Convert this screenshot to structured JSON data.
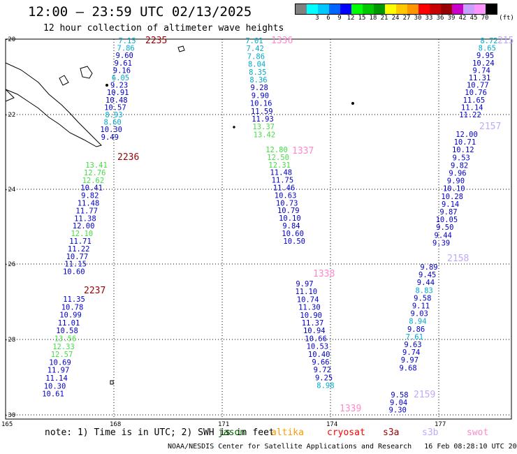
{
  "header": {
    "title": "12:00 – 23:59 UTC 02/13/2025",
    "subtitle": "12 hour collection of altimeter wave heights"
  },
  "legend": {
    "unit": "(ft)",
    "items": [
      {
        "label": "",
        "color": "#808080"
      },
      {
        "label": "3",
        "color": "#00ffff"
      },
      {
        "label": "6",
        "color": "#00c8ff"
      },
      {
        "label": "9",
        "color": "#0064ff"
      },
      {
        "label": "12",
        "color": "#0000ff"
      },
      {
        "label": "15",
        "color": "#00ff00"
      },
      {
        "label": "18",
        "color": "#00c800"
      },
      {
        "label": "21",
        "color": "#009600"
      },
      {
        "label": "24",
        "color": "#ffff00"
      },
      {
        "label": "27",
        "color": "#ffc800"
      },
      {
        "label": "30",
        "color": "#ff9600"
      },
      {
        "label": "33",
        "color": "#ff0000"
      },
      {
        "label": "36",
        "color": "#c80000"
      },
      {
        "label": "39",
        "color": "#960000"
      },
      {
        "label": "42",
        "color": "#c800c8"
      },
      {
        "label": "45",
        "color": "#c8a0ff"
      },
      {
        "label": "70",
        "color": "#ff96ff"
      },
      {
        "label": "",
        "color": "#000000"
      }
    ]
  },
  "axes": {
    "lat_labels": [
      "-20",
      "-22",
      "-24",
      "-26",
      "-28",
      "-30"
    ],
    "lon_labels": [
      "165",
      "168",
      "171",
      "174",
      "177"
    ]
  },
  "palette": {
    "blue": "#0000cc",
    "cyan": "#00aacc",
    "green": "#44dd44",
    "dkred": "#990000",
    "pink": "#ff88cc",
    "lav": "#c0a8ff"
  },
  "tracks": [
    {
      "time_label": {
        "text": "2235",
        "color": "dkred"
      },
      "values": [
        {
          "v": "7.15",
          "c": "cyan"
        },
        {
          "v": "7.86",
          "c": "cyan"
        },
        {
          "v": "9.60",
          "c": "blue"
        },
        {
          "v": "9.61",
          "c": "blue"
        },
        {
          "v": "9.16",
          "c": "blue"
        },
        {
          "v": "6.05",
          "c": "cyan"
        },
        {
          "v": "9.23",
          "c": "blue"
        },
        {
          "v": "10.91",
          "c": "blue"
        },
        {
          "v": "10.48",
          "c": "blue"
        },
        {
          "v": "10.57",
          "c": "blue"
        },
        {
          "v": "8.93",
          "c": "cyan"
        },
        {
          "v": "8.60",
          "c": "cyan"
        },
        {
          "v": "10.30",
          "c": "blue"
        },
        {
          "v": "9.49",
          "c": "blue"
        }
      ]
    },
    {
      "time_label": {
        "text": "2236",
        "color": "dkred"
      },
      "values": [
        {
          "v": "13.41",
          "c": "green"
        },
        {
          "v": "12.76",
          "c": "green"
        },
        {
          "v": "12.62",
          "c": "green"
        },
        {
          "v": "10.41",
          "c": "blue"
        },
        {
          "v": "9.82",
          "c": "blue"
        },
        {
          "v": "11.48",
          "c": "blue"
        },
        {
          "v": "11.77",
          "c": "blue"
        },
        {
          "v": "11.38",
          "c": "blue"
        },
        {
          "v": "12.00",
          "c": "blue"
        },
        {
          "v": "12.10",
          "c": "green"
        },
        {
          "v": "11.71",
          "c": "blue"
        },
        {
          "v": "11.22",
          "c": "blue"
        },
        {
          "v": "10.77",
          "c": "blue"
        },
        {
          "v": "11.15",
          "c": "blue"
        },
        {
          "v": "10.60",
          "c": "blue"
        }
      ]
    },
    {
      "time_label": {
        "text": "2237",
        "color": "dkred"
      },
      "values": [
        {
          "v": "11.35",
          "c": "blue"
        },
        {
          "v": "10.78",
          "c": "blue"
        },
        {
          "v": "10.99",
          "c": "blue"
        },
        {
          "v": "11.01",
          "c": "blue"
        },
        {
          "v": "10.58",
          "c": "blue"
        },
        {
          "v": "13.56",
          "c": "green"
        },
        {
          "v": "12.33",
          "c": "green"
        },
        {
          "v": "12.57",
          "c": "green"
        },
        {
          "v": "10.69",
          "c": "blue"
        },
        {
          "v": "11.97",
          "c": "blue"
        },
        {
          "v": "11.14",
          "c": "blue"
        },
        {
          "v": "10.30",
          "c": "blue"
        },
        {
          "v": "10.61",
          "c": "blue"
        }
      ]
    },
    {
      "time_label": {
        "text": "1336",
        "color": "pink"
      },
      "values": [
        {
          "v": "7.01",
          "c": "cyan"
        },
        {
          "v": "7.42",
          "c": "cyan"
        },
        {
          "v": "7.86",
          "c": "cyan"
        },
        {
          "v": "8.04",
          "c": "cyan"
        },
        {
          "v": "8.35",
          "c": "cyan"
        },
        {
          "v": "8.36",
          "c": "cyan"
        },
        {
          "v": "9.28",
          "c": "blue"
        },
        {
          "v": "9.90",
          "c": "blue"
        },
        {
          "v": "10.16",
          "c": "blue"
        },
        {
          "v": "11.59",
          "c": "blue"
        },
        {
          "v": "11.93",
          "c": "blue"
        },
        {
          "v": "13.37",
          "c": "green"
        },
        {
          "v": "13.42",
          "c": "green"
        }
      ]
    },
    {
      "time_label": {
        "text": "1337",
        "color": "pink"
      },
      "values": [
        {
          "v": "12.80",
          "c": "green"
        },
        {
          "v": "12.50",
          "c": "green"
        },
        {
          "v": "12.31",
          "c": "green"
        },
        {
          "v": "11.48",
          "c": "blue"
        },
        {
          "v": "11.75",
          "c": "blue"
        },
        {
          "v": "11.46",
          "c": "blue"
        },
        {
          "v": "10.63",
          "c": "blue"
        },
        {
          "v": "10.73",
          "c": "blue"
        },
        {
          "v": "10.79",
          "c": "blue"
        },
        {
          "v": "10.10",
          "c": "blue"
        },
        {
          "v": "9.84",
          "c": "blue"
        },
        {
          "v": "10.60",
          "c": "blue"
        },
        {
          "v": "10.50",
          "c": "blue"
        }
      ]
    },
    {
      "time_label": {
        "text": "1338",
        "color": "pink"
      },
      "values": [
        {
          "v": "9.97",
          "c": "blue"
        },
        {
          "v": "11.10",
          "c": "blue"
        },
        {
          "v": "10.74",
          "c": "blue"
        },
        {
          "v": "11.30",
          "c": "blue"
        },
        {
          "v": "10.90",
          "c": "blue"
        },
        {
          "v": "11.37",
          "c": "blue"
        },
        {
          "v": "10.94",
          "c": "blue"
        },
        {
          "v": "10.66",
          "c": "blue"
        },
        {
          "v": "10.53",
          "c": "blue"
        },
        {
          "v": "10.40",
          "c": "blue"
        },
        {
          "v": "9.66",
          "c": "blue"
        },
        {
          "v": "9.72",
          "c": "blue"
        },
        {
          "v": "9.25",
          "c": "blue"
        },
        {
          "v": "8.98",
          "c": "cyan"
        }
      ]
    },
    {
      "time_label": {
        "text": "1339",
        "color": "pink"
      },
      "values": []
    },
    {
      "time_label": {
        "text": "215",
        "color": "lav"
      },
      "values": [
        {
          "v": "8.72",
          "c": "cyan"
        },
        {
          "v": "8.65",
          "c": "cyan"
        },
        {
          "v": "9.95",
          "c": "blue"
        },
        {
          "v": "10.24",
          "c": "blue"
        },
        {
          "v": "9.74",
          "c": "blue"
        },
        {
          "v": "11.31",
          "c": "blue"
        },
        {
          "v": "10.77",
          "c": "blue"
        },
        {
          "v": "10.76",
          "c": "blue"
        },
        {
          "v": "11.65",
          "c": "blue"
        },
        {
          "v": "11.14",
          "c": "blue"
        },
        {
          "v": "11.22",
          "c": "blue"
        }
      ]
    },
    {
      "time_label": {
        "text": "2157",
        "color": "lav"
      },
      "values": [
        {
          "v": "12.00",
          "c": "blue"
        },
        {
          "v": "10.71",
          "c": "blue"
        },
        {
          "v": "10.12",
          "c": "blue"
        },
        {
          "v": "9.53",
          "c": "blue"
        },
        {
          "v": "9.82",
          "c": "blue"
        },
        {
          "v": "9.96",
          "c": "blue"
        },
        {
          "v": "9.90",
          "c": "blue"
        },
        {
          "v": "10.10",
          "c": "blue"
        },
        {
          "v": "10.28",
          "c": "blue"
        },
        {
          "v": "9.14",
          "c": "blue"
        },
        {
          "v": "9.87",
          "c": "blue"
        },
        {
          "v": "10.05",
          "c": "blue"
        },
        {
          "v": "9.50",
          "c": "blue"
        },
        {
          "v": "9.44",
          "c": "blue"
        },
        {
          "v": "9.39",
          "c": "blue"
        }
      ]
    },
    {
      "time_label": {
        "text": "2158",
        "color": "lav"
      },
      "values": [
        {
          "v": "9.89",
          "c": "blue"
        },
        {
          "v": "9.45",
          "c": "blue"
        },
        {
          "v": "9.44",
          "c": "blue"
        },
        {
          "v": "8.83",
          "c": "cyan"
        },
        {
          "v": "9.58",
          "c": "blue"
        },
        {
          "v": "9.11",
          "c": "blue"
        },
        {
          "v": "9.03",
          "c": "blue"
        },
        {
          "v": "8.94",
          "c": "cyan"
        },
        {
          "v": "9.86",
          "c": "blue"
        },
        {
          "v": "7.61",
          "c": "cyan"
        },
        {
          "v": "9.63",
          "c": "blue"
        },
        {
          "v": "9.74",
          "c": "blue"
        },
        {
          "v": "9.97",
          "c": "blue"
        },
        {
          "v": "9.68",
          "c": "blue"
        }
      ]
    },
    {
      "time_label": {
        "text": "2159",
        "color": "lav"
      },
      "values": [
        {
          "v": "9.58",
          "c": "blue"
        },
        {
          "v": "9.04",
          "c": "blue"
        },
        {
          "v": "9.30",
          "c": "blue"
        }
      ]
    }
  ],
  "footer": {
    "note": "note: 1) Time is in UTC; 2) SWH is in feet",
    "satellites": [
      {
        "name": "jason",
        "color": "#006400"
      },
      {
        "name": "altika",
        "color": "#ff9900"
      },
      {
        "name": "cryosat",
        "color": "#ff0000"
      },
      {
        "name": "s3a",
        "color": "#990000"
      },
      {
        "name": "s3b",
        "color": "#c0a8ff"
      },
      {
        "name": "swot",
        "color": "#ff88cc"
      }
    ],
    "credit": "NOAA/NESDIS Center for Satellite Applications and Research   16 Feb 08:28:10 UTC 2025"
  }
}
